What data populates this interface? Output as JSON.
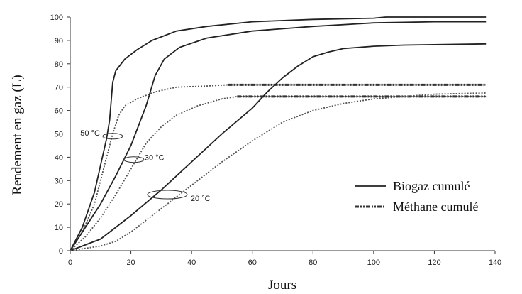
{
  "chart_data": {
    "type": "line",
    "xlabel": "Jours",
    "ylabel": "Rendement en gaz (L)",
    "xlim": [
      0,
      140
    ],
    "ylim": [
      0,
      100
    ],
    "xticks": [
      0,
      20,
      40,
      60,
      80,
      100,
      120,
      140
    ],
    "yticks": [
      0,
      10,
      20,
      30,
      40,
      50,
      60,
      70,
      80,
      90,
      100
    ],
    "grid": false,
    "legend_position": "right",
    "legend": [
      {
        "label": "Biogaz cumulé",
        "style": "solid"
      },
      {
        "label": "Méthane cumulé",
        "style": "dash-dot-dot"
      }
    ],
    "annotations": [
      {
        "text": "50 °C",
        "x": 14,
        "y": 49
      },
      {
        "text": "30 °C",
        "x": 21,
        "y": 39
      },
      {
        "text": "20 °C",
        "x": 32,
        "y": 24
      }
    ],
    "series": [
      {
        "temperature": "50 °C",
        "kind": "biogaz",
        "style": "solid",
        "points": [
          [
            0,
            0
          ],
          [
            4,
            10
          ],
          [
            8,
            25
          ],
          [
            12,
            48
          ],
          [
            13,
            56
          ],
          [
            14,
            72
          ],
          [
            15,
            77
          ],
          [
            18,
            82
          ],
          [
            22,
            86
          ],
          [
            27,
            90
          ],
          [
            35,
            94
          ],
          [
            45,
            96
          ],
          [
            60,
            98
          ],
          [
            80,
            99
          ],
          [
            100,
            99.5
          ],
          [
            104,
            100
          ],
          [
            137,
            100
          ]
        ]
      },
      {
        "temperature": "50 °C",
        "kind": "méthane",
        "style": "dotted",
        "points": [
          [
            0,
            0
          ],
          [
            4,
            8
          ],
          [
            8,
            20
          ],
          [
            12,
            40
          ],
          [
            14,
            50
          ],
          [
            16,
            58
          ],
          [
            18,
            62
          ],
          [
            22,
            65
          ],
          [
            28,
            68
          ],
          [
            35,
            70
          ],
          [
            45,
            70.5
          ],
          [
            52,
            71
          ],
          [
            137,
            71
          ]
        ]
      },
      {
        "temperature": "50 °C",
        "kind": "méthane",
        "style": "dash-dot-dot",
        "points": [
          [
            52,
            71
          ],
          [
            137,
            71
          ]
        ]
      },
      {
        "temperature": "30 °C",
        "kind": "biogaz",
        "style": "solid",
        "points": [
          [
            0,
            0
          ],
          [
            5,
            10
          ],
          [
            10,
            20
          ],
          [
            15,
            32
          ],
          [
            20,
            45
          ],
          [
            25,
            62
          ],
          [
            28,
            75
          ],
          [
            31,
            82
          ],
          [
            36,
            87
          ],
          [
            45,
            91
          ],
          [
            60,
            94
          ],
          [
            80,
            96
          ],
          [
            100,
            97.5
          ],
          [
            120,
            98
          ],
          [
            137,
            98
          ]
        ]
      },
      {
        "temperature": "30 °C",
        "kind": "méthane",
        "style": "dotted",
        "points": [
          [
            0,
            0
          ],
          [
            5,
            6
          ],
          [
            10,
            14
          ],
          [
            15,
            24
          ],
          [
            20,
            35
          ],
          [
            25,
            46
          ],
          [
            30,
            53
          ],
          [
            35,
            58
          ],
          [
            42,
            62
          ],
          [
            50,
            65
          ],
          [
            55,
            66
          ],
          [
            137,
            66
          ]
        ]
      },
      {
        "temperature": "30 °C",
        "kind": "méthane",
        "style": "dash-dot-dot",
        "points": [
          [
            55,
            66
          ],
          [
            137,
            66
          ]
        ]
      },
      {
        "temperature": "20 °C",
        "kind": "biogaz",
        "style": "solid",
        "points": [
          [
            0,
            0
          ],
          [
            10,
            5
          ],
          [
            20,
            15
          ],
          [
            30,
            26
          ],
          [
            40,
            38
          ],
          [
            50,
            50
          ],
          [
            60,
            61
          ],
          [
            65,
            68
          ],
          [
            70,
            74
          ],
          [
            75,
            79
          ],
          [
            80,
            83
          ],
          [
            85,
            85
          ],
          [
            90,
            86.5
          ],
          [
            100,
            87.5
          ],
          [
            110,
            88
          ],
          [
            137,
            88.5
          ]
        ]
      },
      {
        "temperature": "20 °C",
        "kind": "méthane",
        "style": "dotted",
        "points": [
          [
            0,
            0
          ],
          [
            10,
            2
          ],
          [
            15,
            4
          ],
          [
            20,
            8
          ],
          [
            25,
            13
          ],
          [
            30,
            18
          ],
          [
            40,
            28
          ],
          [
            50,
            38
          ],
          [
            60,
            47
          ],
          [
            70,
            55
          ],
          [
            80,
            60
          ],
          [
            90,
            63
          ],
          [
            100,
            65
          ],
          [
            110,
            66
          ],
          [
            120,
            67
          ],
          [
            137,
            67.5
          ]
        ]
      }
    ]
  }
}
